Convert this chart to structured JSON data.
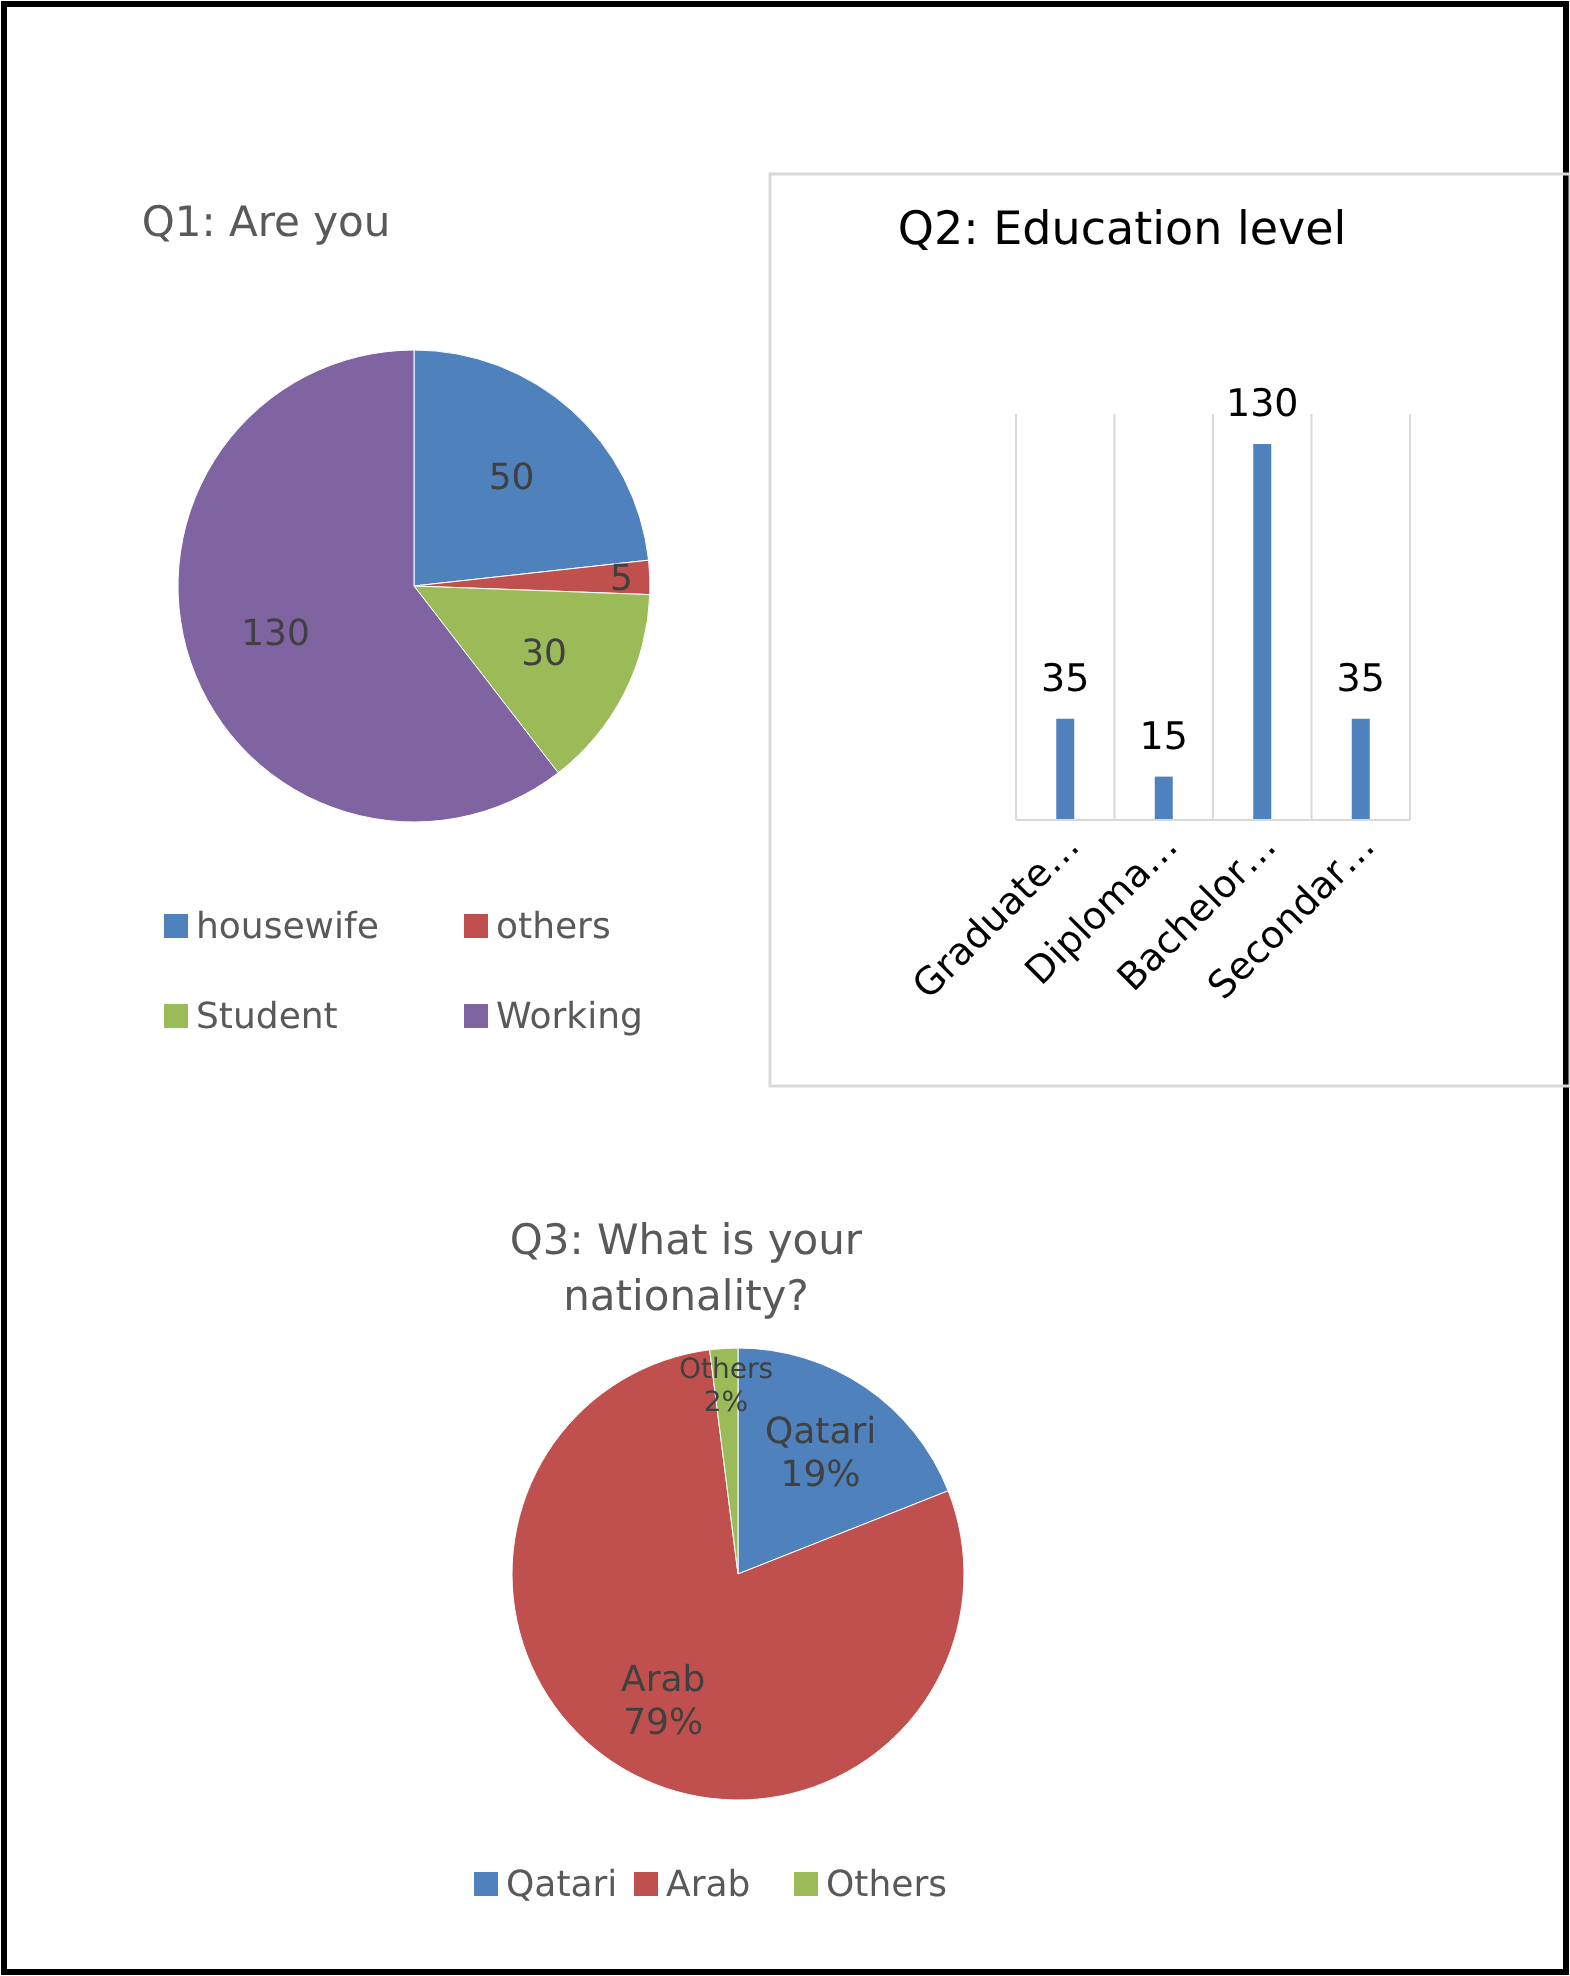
{
  "chart_data": [
    {
      "type": "pie",
      "title": "Q1: Are you",
      "categories": [
        "housewife",
        "others",
        "Student",
        "Working"
      ],
      "values": [
        50,
        5,
        30,
        130
      ],
      "colors": [
        "#4f81bd",
        "#c0504d",
        "#9bbb59",
        "#8064a2"
      ],
      "data_labels": true,
      "legend": "bottom"
    },
    {
      "type": "bar",
      "title": "Q2: Education level",
      "categories": [
        "Graduate…",
        "Diploma…",
        "Bachelor…",
        "Secondar…"
      ],
      "values": [
        35,
        15,
        130,
        35
      ],
      "color": "#4f81bd",
      "ylim": [
        0,
        130
      ],
      "tick_labels": "x",
      "data_labels": true,
      "grid": "x"
    },
    {
      "type": "pie",
      "title": "Q3: What is your nationality?",
      "categories": [
        "Qatari",
        "Arab",
        "Others"
      ],
      "values": [
        19,
        79,
        2
      ],
      "colors": [
        "#4f81bd",
        "#c0504d",
        "#9bbb59"
      ],
      "value_labels": [
        "Qatari 19%",
        "Arab 79%",
        "Others 2%"
      ],
      "legend": "bottom"
    }
  ]
}
